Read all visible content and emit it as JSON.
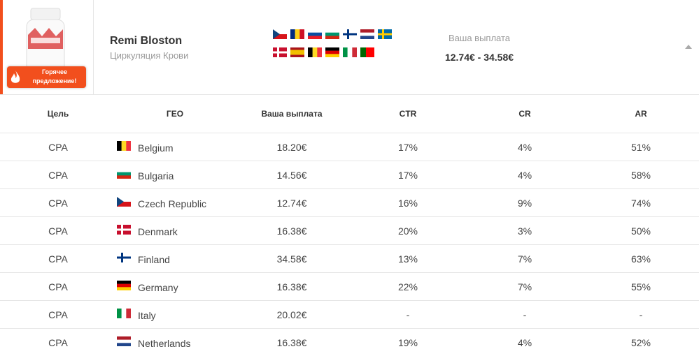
{
  "header": {
    "badge": "Горячее предложение!",
    "name": "Remi Bloston",
    "category": "Циркуляция Крови",
    "payout_label": "Ваша выплата",
    "payout_range": "12.74€ - 34.58€"
  },
  "table": {
    "columns": [
      "Цель",
      "ГЕО",
      "Ваша выплата",
      "CTR",
      "CR",
      "AR"
    ],
    "rows": [
      [
        "CPA",
        "Belgium",
        "18.20€",
        "17%",
        "4%",
        "51%"
      ],
      [
        "CPA",
        "Bulgaria",
        "14.56€",
        "17%",
        "4%",
        "58%"
      ],
      [
        "CPA",
        "Czech Republic",
        "12.74€",
        "16%",
        "9%",
        "74%"
      ],
      [
        "CPA",
        "Denmark",
        "16.38€",
        "20%",
        "3%",
        "50%"
      ],
      [
        "CPA",
        "Finland",
        "34.58€",
        "13%",
        "7%",
        "63%"
      ],
      [
        "CPA",
        "Germany",
        "16.38€",
        "22%",
        "7%",
        "55%"
      ],
      [
        "CPA",
        "Italy",
        "20.02€",
        "-",
        "-",
        "-"
      ],
      [
        "CPA",
        "Netherlands",
        "16.38€",
        "19%",
        "4%",
        "52%"
      ]
    ]
  }
}
